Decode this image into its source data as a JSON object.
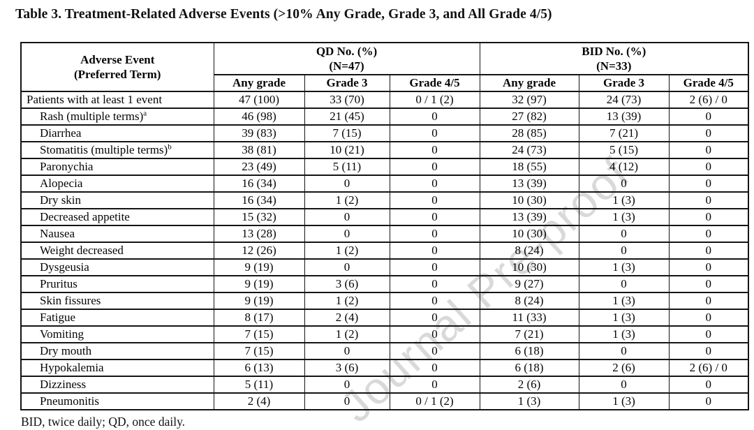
{
  "page": {
    "title": "Table 3. Treatment-Related Adverse Events (>10% Any Grade, Grade 3, and All Grade 4/5)",
    "watermark": "Journal Pre-proof",
    "footnote": "BID, twice daily; QD, once daily."
  },
  "table": {
    "stub_header_line1": "Adverse Event",
    "stub_header_line2": "(Preferred Term)",
    "groups": [
      {
        "label": "QD No. (%)",
        "n": "(N=47)"
      },
      {
        "label": "BID No. (%)",
        "n": "(N=33)"
      }
    ],
    "subheaders": [
      "Any grade",
      "Grade 3",
      "Grade 4/5",
      "Any grade",
      "Grade 3",
      "Grade 4/5"
    ],
    "rows": [
      {
        "event": "Patients with at least 1 event",
        "sup": "",
        "indent": false,
        "values": [
          "47 (100)",
          "33 (70)",
          "0 / 1 (2)",
          "32 (97)",
          "24 (73)",
          "2 (6) / 0"
        ]
      },
      {
        "event": "Rash (multiple terms)",
        "sup": "a",
        "indent": true,
        "values": [
          "46 (98)",
          "21 (45)",
          "0",
          "27 (82)",
          "13 (39)",
          "0"
        ]
      },
      {
        "event": "Diarrhea",
        "sup": "",
        "indent": true,
        "values": [
          "39 (83)",
          "7 (15)",
          "0",
          "28 (85)",
          "7 (21)",
          "0"
        ]
      },
      {
        "event": "Stomatitis (multiple terms)",
        "sup": "b",
        "indent": true,
        "values": [
          "38 (81)",
          "10 (21)",
          "0",
          "24 (73)",
          "5 (15)",
          "0"
        ]
      },
      {
        "event": "Paronychia",
        "sup": "",
        "indent": true,
        "values": [
          "23 (49)",
          "5 (11)",
          "0",
          "18 (55)",
          "4 (12)",
          "0"
        ]
      },
      {
        "event": "Alopecia",
        "sup": "",
        "indent": true,
        "values": [
          "16 (34)",
          "0",
          "0",
          "13 (39)",
          "0",
          "0"
        ]
      },
      {
        "event": "Dry skin",
        "sup": "",
        "indent": true,
        "values": [
          "16 (34)",
          "1 (2)",
          "0",
          "10 (30)",
          "1 (3)",
          "0"
        ]
      },
      {
        "event": "Decreased appetite",
        "sup": "",
        "indent": true,
        "values": [
          "15 (32)",
          "0",
          "0",
          "13 (39)",
          "1 (3)",
          "0"
        ]
      },
      {
        "event": "Nausea",
        "sup": "",
        "indent": true,
        "values": [
          "13 (28)",
          "0",
          "0",
          "10 (30)",
          "0",
          "0"
        ]
      },
      {
        "event": "Weight decreased",
        "sup": "",
        "indent": true,
        "values": [
          "12 (26)",
          "1 (2)",
          "0",
          "8 (24)",
          "0",
          "0"
        ]
      },
      {
        "event": "Dysgeusia",
        "sup": "",
        "indent": true,
        "values": [
          "9 (19)",
          "0",
          "0",
          "10 (30)",
          "1 (3)",
          "0"
        ]
      },
      {
        "event": "Pruritus",
        "sup": "",
        "indent": true,
        "values": [
          "9 (19)",
          "3 (6)",
          "0",
          "9 (27)",
          "0",
          "0"
        ]
      },
      {
        "event": "Skin fissures",
        "sup": "",
        "indent": true,
        "values": [
          "9 (19)",
          "1 (2)",
          "0",
          "8 (24)",
          "1 (3)",
          "0"
        ]
      },
      {
        "event": "Fatigue",
        "sup": "",
        "indent": true,
        "values": [
          "8 (17)",
          "2 (4)",
          "0",
          "11 (33)",
          "1 (3)",
          "0"
        ]
      },
      {
        "event": "Vomiting",
        "sup": "",
        "indent": true,
        "values": [
          "7 (15)",
          "1 (2)",
          "0",
          "7 (21)",
          "1 (3)",
          "0"
        ]
      },
      {
        "event": "Dry mouth",
        "sup": "",
        "indent": true,
        "values": [
          "7 (15)",
          "0",
          "0",
          "6 (18)",
          "0",
          "0"
        ]
      },
      {
        "event": "Hypokalemia",
        "sup": "",
        "indent": true,
        "values": [
          "6 (13)",
          "3 (6)",
          "0",
          "6 (18)",
          "2 (6)",
          "2 (6) / 0"
        ]
      },
      {
        "event": "Dizziness",
        "sup": "",
        "indent": true,
        "values": [
          "5 (11)",
          "0",
          "0",
          "2 (6)",
          "0",
          "0"
        ]
      },
      {
        "event": "Pneumonitis",
        "sup": "",
        "indent": true,
        "values": [
          "2 (4)",
          "0",
          "0 / 1 (2)",
          "1 (3)",
          "1 (3)",
          "0"
        ]
      }
    ]
  },
  "colors": {
    "text": "#050505",
    "border": "#141414",
    "watermark_gray": "#d9d9d9",
    "background": "#ffffff"
  }
}
